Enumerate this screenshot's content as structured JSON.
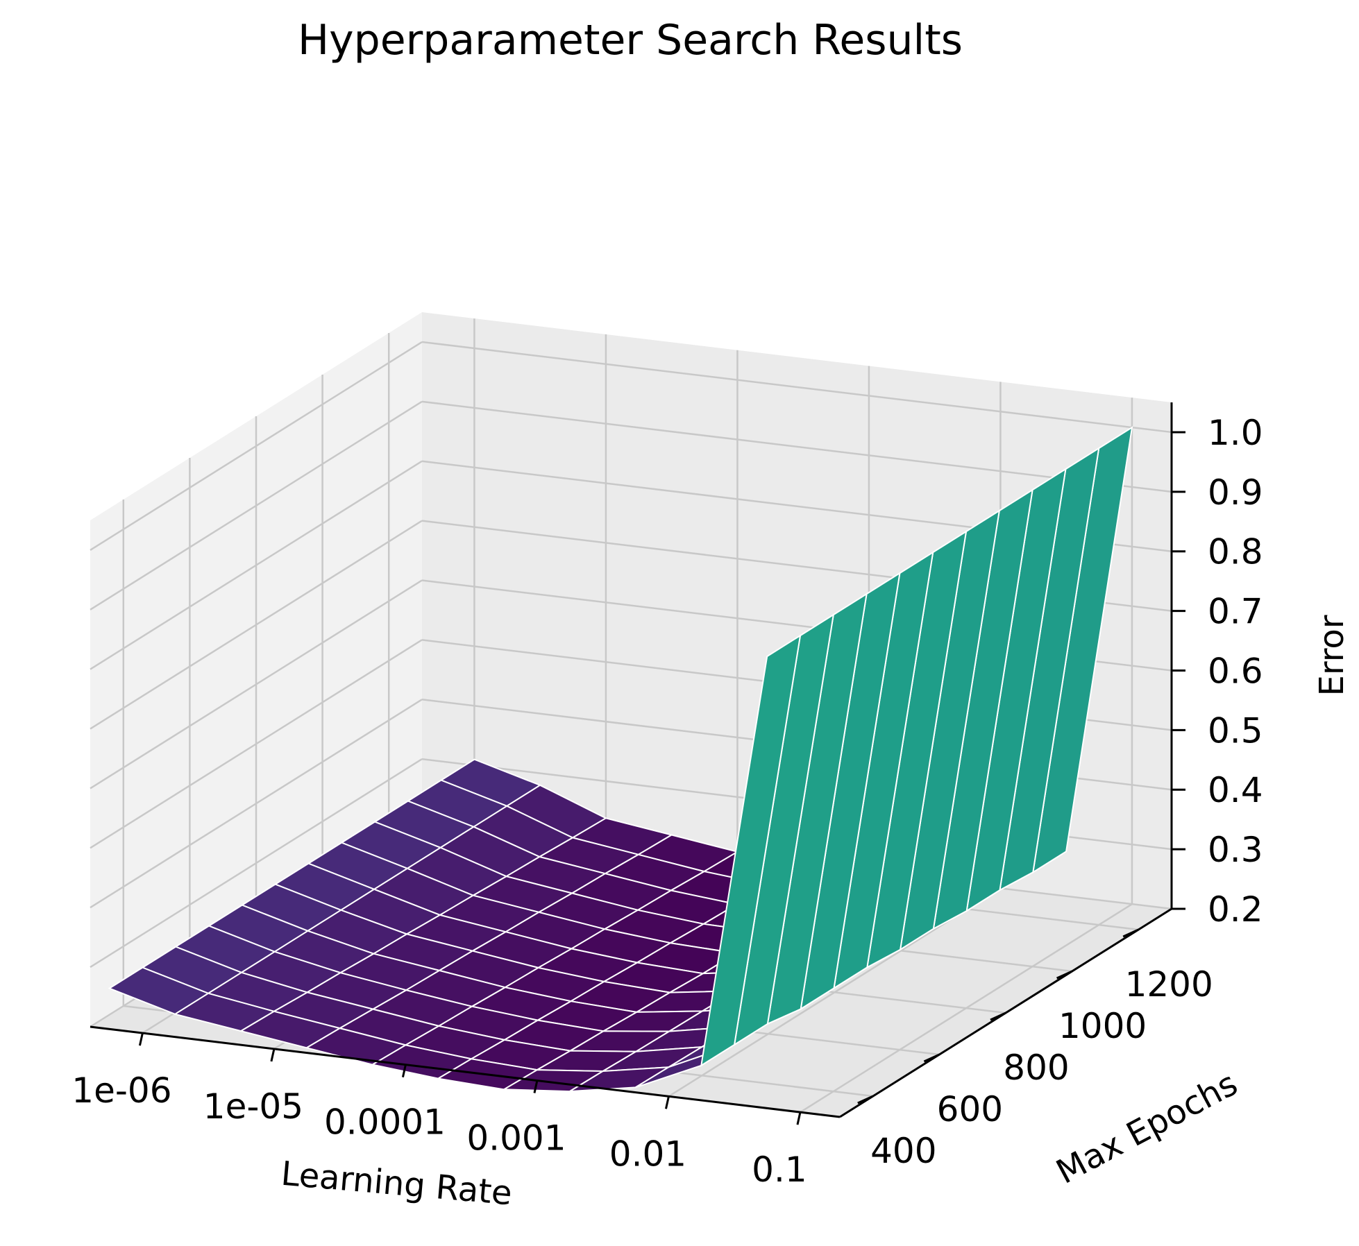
{
  "chart_data": {
    "type": "surface3d",
    "title": "Hyperparameter Search Results",
    "xlabel": "Learning Rate",
    "ylabel": "Max Epochs",
    "zlabel": "Error",
    "x_scale": "log",
    "x_ticks": [
      "1e-06",
      "1e-05",
      "0.0001",
      "0.001",
      "0.01",
      "0.1"
    ],
    "x_tick_values": [
      1e-06,
      1e-05,
      0.0001,
      0.001,
      0.01,
      0.1
    ],
    "y_ticks": [
      "400",
      "600",
      "800",
      "1000",
      "1200"
    ],
    "y_tick_values": [
      400,
      600,
      800,
      1000,
      1200
    ],
    "z_ticks": [
      "0.2",
      "0.3",
      "0.4",
      "0.5",
      "0.6",
      "0.7",
      "0.8",
      "0.9",
      "1.0"
    ],
    "z_tick_values": [
      0.2,
      0.3,
      0.4,
      0.5,
      0.6,
      0.7,
      0.8,
      0.9,
      1.0
    ],
    "xlim": [
      4e-07,
      0.2
    ],
    "ylim": [
      300,
      1300
    ],
    "zlim": [
      0.2,
      1.05
    ],
    "grid": true,
    "colormap": "viridis",
    "learning_rates": [
      1e-06,
      3.16e-06,
      1e-05,
      3.16e-05,
      0.0001,
      0.000316,
      0.001,
      0.00316,
      0.01,
      0.0316,
      0.1
    ],
    "max_epochs": [
      200,
      300,
      400,
      500,
      600,
      700,
      800,
      900,
      1000,
      1100,
      1200,
      1300
    ],
    "error": [
      [
        0.31,
        0.28,
        0.265,
        0.25,
        0.235,
        0.225,
        0.22,
        0.23,
        0.25,
        0.3,
        1.0
      ],
      [
        0.31,
        0.28,
        0.263,
        0.248,
        0.233,
        0.223,
        0.218,
        0.229,
        0.249,
        0.3,
        1.0
      ],
      [
        0.31,
        0.28,
        0.26,
        0.245,
        0.23,
        0.22,
        0.215,
        0.227,
        0.248,
        0.3,
        1.0
      ],
      [
        0.31,
        0.28,
        0.258,
        0.242,
        0.228,
        0.218,
        0.213,
        0.226,
        0.247,
        0.29,
        1.0
      ],
      [
        0.31,
        0.28,
        0.255,
        0.24,
        0.225,
        0.215,
        0.21,
        0.225,
        0.246,
        0.29,
        1.0
      ],
      [
        0.31,
        0.28,
        0.253,
        0.238,
        0.223,
        0.213,
        0.208,
        0.224,
        0.245,
        0.29,
        1.0
      ],
      [
        0.31,
        0.28,
        0.25,
        0.235,
        0.22,
        0.21,
        0.205,
        0.222,
        0.244,
        0.285,
        1.0
      ],
      [
        0.31,
        0.28,
        0.248,
        0.233,
        0.218,
        0.208,
        0.204,
        0.221,
        0.243,
        0.285,
        1.0
      ],
      [
        0.31,
        0.28,
        0.245,
        0.23,
        0.215,
        0.205,
        0.203,
        0.22,
        0.242,
        0.28,
        1.0
      ],
      [
        0.31,
        0.28,
        0.243,
        0.228,
        0.213,
        0.203,
        0.202,
        0.219,
        0.241,
        0.28,
        1.0
      ],
      [
        0.31,
        0.28,
        0.24,
        0.225,
        0.21,
        0.2,
        0.201,
        0.218,
        0.24,
        0.275,
        1.0
      ],
      [
        0.31,
        0.28,
        0.238,
        0.223,
        0.208,
        0.2,
        0.2,
        0.217,
        0.239,
        0.275,
        1.0
      ]
    ]
  }
}
